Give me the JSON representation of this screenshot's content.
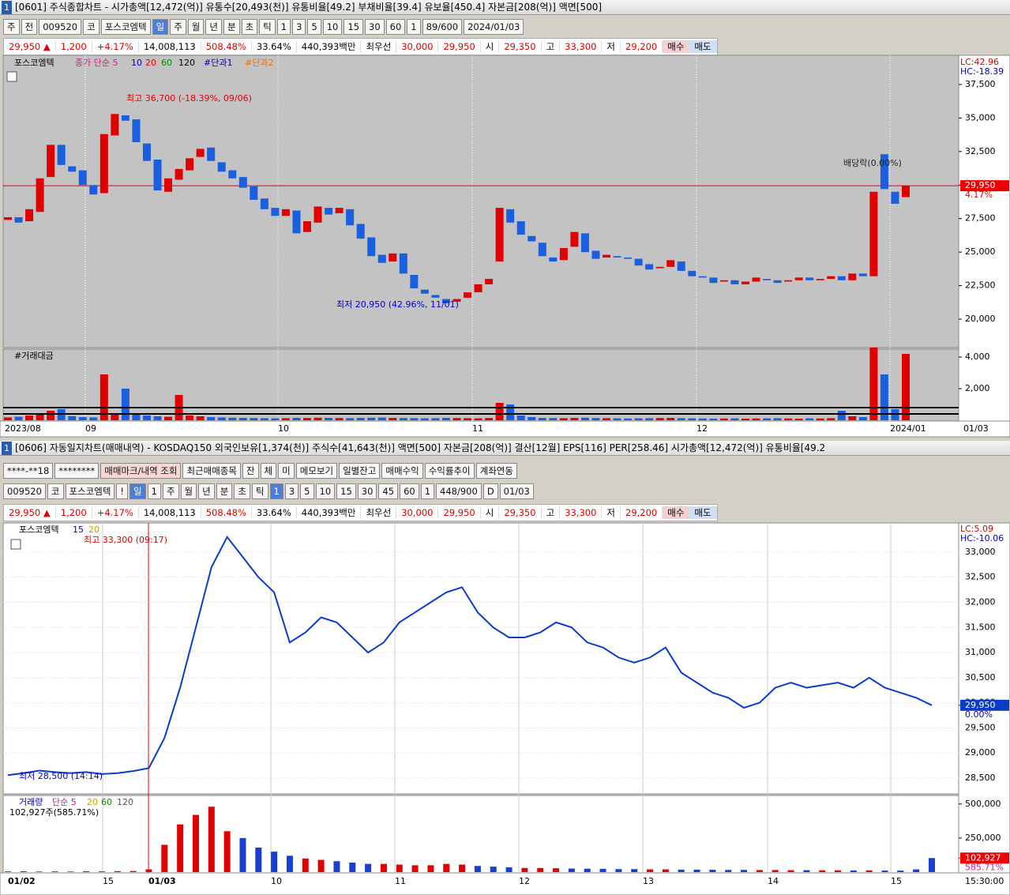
{
  "windows": [
    {
      "title": "[0601] 주식종합차트 - 시가총액[12,472(억)] 유통수[20,493(천)] 유통비율[49.2] 부채비율[39.4] 유보율[450.4] 자본금[208(억)] 액면[500]",
      "toolbar": [
        "주",
        "전",
        "009520",
        "코",
        "포스코엠텍",
        "일",
        "주",
        "월",
        "년",
        "분",
        "초",
        "틱",
        "1",
        "3",
        "5",
        "10",
        "15",
        "30",
        "60",
        "1",
        "89/600",
        "2024/01/03"
      ],
      "legend": [
        "포스코엠텍",
        "종가 단순 5",
        "10",
        "20",
        "60",
        "120",
        "#단과1",
        "#단과2"
      ]
    },
    {
      "title": "[0606] 자동일지차트(매매내역) - KOSDAQ150 외국인보유[1,374(천)] 주식수[41,643(천)] 액면[500] 자본금[208(억)] 결산[12월] EPS[116] PER[258.46] 시가총액[12,472(억)] 유통비율[49.2",
      "toolbar_top": [
        "****-**18",
        "********",
        "매매마크/내역 조회",
        "최근매매종목",
        "잔",
        "체",
        "미",
        "메모보기",
        "일별잔고",
        "매매수익",
        "수익률추이",
        "계좌연동"
      ],
      "toolbar": [
        "009520",
        "코",
        "포스코엠텍",
        "!",
        "일",
        "1",
        "주",
        "월",
        "년",
        "분",
        "초",
        "틱",
        "1",
        "3",
        "5",
        "10",
        "15",
        "30",
        "45",
        "60",
        "1",
        "448/900",
        "D",
        "01/03"
      ],
      "legend": [
        "포스코엠텍",
        "15",
        "20"
      ],
      "volume_legend": [
        "거래량",
        "단순 5",
        "20",
        "60",
        "120"
      ]
    }
  ],
  "price_row": [
    "29,950 ▲",
    "1,200",
    "+4.17%",
    "14,008,113",
    "508.48%",
    "33.64%",
    "440,393백만",
    "최우선",
    "30,000",
    "29,950",
    "시",
    "29,350",
    "고",
    "33,300",
    "저",
    "29,200",
    "매수",
    "매도"
  ],
  "chart_data": [
    {
      "type": "candlestick",
      "candles": [
        [
          27400,
          27600
        ],
        [
          27600,
          27200
        ],
        [
          27300,
          28200
        ],
        [
          28000,
          30500
        ],
        [
          30600,
          33000
        ],
        [
          33000,
          31500
        ],
        [
          31400,
          31000
        ],
        [
          31100,
          30000
        ],
        [
          30000,
          29300
        ],
        [
          29400,
          33800
        ],
        [
          33700,
          35300
        ],
        [
          35200,
          34800
        ],
        [
          34900,
          33200
        ],
        [
          33100,
          31800
        ],
        [
          31900,
          29600
        ],
        [
          29500,
          30500
        ],
        [
          30400,
          31200
        ],
        [
          31100,
          32000
        ],
        [
          32100,
          32700
        ],
        [
          32800,
          31800
        ],
        [
          31700,
          31000
        ],
        [
          31100,
          30500
        ],
        [
          30600,
          29800
        ],
        [
          29900,
          28900
        ],
        [
          29000,
          28200
        ],
        [
          28300,
          27700
        ],
        [
          27700,
          28200
        ],
        [
          28100,
          26400
        ],
        [
          26500,
          27300
        ],
        [
          27200,
          28400
        ],
        [
          28300,
          27800
        ],
        [
          27900,
          28300
        ],
        [
          28200,
          27000
        ],
        [
          27100,
          26000
        ],
        [
          26100,
          24700
        ],
        [
          24800,
          24200
        ],
        [
          24300,
          24900
        ],
        [
          24900,
          23400
        ],
        [
          23300,
          22300
        ],
        [
          22200,
          21900
        ],
        [
          21800,
          21600
        ],
        [
          21500,
          21200
        ],
        [
          21300,
          21500
        ],
        [
          21600,
          22000
        ],
        [
          22000,
          22600
        ],
        [
          22600,
          23000
        ],
        [
          24300,
          28300
        ],
        [
          28200,
          27200
        ],
        [
          27300,
          26300
        ],
        [
          26200,
          25800
        ],
        [
          25700,
          24700
        ],
        [
          24600,
          24300
        ],
        [
          24400,
          25300
        ],
        [
          25400,
          26500
        ],
        [
          26400,
          25000
        ],
        [
          25100,
          24500
        ],
        [
          24600,
          24800
        ],
        [
          24700,
          24600
        ],
        [
          24600,
          24500
        ],
        [
          24500,
          24000
        ],
        [
          24100,
          23700
        ],
        [
          23800,
          23900
        ],
        [
          23900,
          24400
        ],
        [
          24300,
          23600
        ],
        [
          23600,
          23200
        ],
        [
          23200,
          23100
        ],
        [
          23100,
          22700
        ],
        [
          22800,
          22900
        ],
        [
          22900,
          22600
        ],
        [
          22600,
          22800
        ],
        [
          22800,
          23100
        ],
        [
          23000,
          22900
        ],
        [
          22900,
          22700
        ],
        [
          22800,
          22900
        ],
        [
          22900,
          23100
        ],
        [
          23100,
          22900
        ],
        [
          22900,
          23000
        ],
        [
          23000,
          23200
        ],
        [
          23200,
          22900
        ],
        [
          22900,
          23400
        ],
        [
          23400,
          23200
        ],
        [
          23200,
          29500
        ],
        [
          32300,
          29700
        ],
        [
          29500,
          28600
        ],
        [
          29100,
          29950
        ]
      ],
      "ylim": [
        17880,
        39560
      ],
      "yticks": [
        {
          "value": 20000,
          "label": "20,000"
        },
        {
          "value": 22500,
          "label": "22,500"
        },
        {
          "value": 25000,
          "label": "25,000"
        },
        {
          "value": 27500,
          "label": "27,500"
        },
        {
          "value": 30000,
          "label": "30,000"
        },
        {
          "value": 32500,
          "label": "32,500"
        },
        {
          "value": 35000,
          "label": "35,000"
        },
        {
          "value": 37500,
          "label": "37,500"
        }
      ],
      "current": {
        "value": 29950,
        "label": "29,950"
      },
      "change_label": "4.17%",
      "lc": "LC:42.96",
      "hc": "HC:-18.39",
      "annotations": [
        "최고 36,700 (-18.39%, 09/06)",
        "최저 20,950 (42.96%, 11/01)",
        "배당락(0.00%)"
      ],
      "volume_title": "#거래대금",
      "volume": [
        180,
        220,
        300,
        420,
        600,
        700,
        260,
        200,
        180,
        2900,
        380,
        2000,
        400,
        300,
        250,
        220,
        1600,
        300,
        250,
        200,
        180,
        160,
        150,
        140,
        130,
        120,
        130,
        150,
        140,
        160,
        150,
        140,
        130,
        150,
        160,
        170,
        150,
        140,
        130,
        120,
        130,
        150,
        140,
        130,
        120,
        140,
        1100,
        1000,
        300,
        200,
        150,
        140,
        130,
        150,
        160,
        140,
        130,
        120,
        110,
        120,
        130,
        140,
        150,
        130,
        120,
        110,
        100,
        110,
        120,
        100,
        110,
        120,
        130,
        110,
        100,
        120,
        110,
        130,
        600,
        250,
        200,
        4600,
        2900,
        700,
        4200
      ],
      "vol_ylim": [
        0,
        4400
      ],
      "vol_yticks": [
        {
          "value": 2000,
          "label": "2,000"
        },
        {
          "value": 4000,
          "label": "4,000"
        }
      ],
      "xlabels": [
        "2023/08",
        "09",
        "10",
        "11",
        "12",
        "2024/01",
        "01/03"
      ]
    },
    {
      "type": "line",
      "values": [
        28560,
        28600,
        28650,
        28620,
        28600,
        28620,
        28580,
        28600,
        28640,
        28700,
        29300,
        30300,
        31500,
        32700,
        33300,
        32900,
        32500,
        32200,
        31200,
        31400,
        31700,
        31600,
        31300,
        31000,
        31200,
        31600,
        31800,
        32000,
        32200,
        32300,
        31800,
        31500,
        31300,
        31300,
        31400,
        31600,
        31500,
        31200,
        31100,
        30900,
        30800,
        30900,
        31100,
        30600,
        30400,
        30200,
        30100,
        29900,
        30000,
        30300,
        30400,
        30300,
        30350,
        30400,
        30300,
        30500,
        30300,
        30200,
        30100,
        29950
      ],
      "color": "#0a3cc8",
      "ylim": [
        28186,
        33580
      ],
      "yticks": [
        {
          "value": 28500,
          "label": "28,500"
        },
        {
          "value": 29000,
          "label": "29,000"
        },
        {
          "value": 29500,
          "label": "29,500"
        },
        {
          "value": 30000,
          "label": "30,000"
        },
        {
          "value": 30500,
          "label": "30,500"
        },
        {
          "value": 31000,
          "label": "31,000"
        },
        {
          "value": 31500,
          "label": "31,500"
        },
        {
          "value": 32000,
          "label": "32,000"
        },
        {
          "value": 32500,
          "label": "32,500"
        },
        {
          "value": 33000,
          "label": "33,000"
        }
      ],
      "current": {
        "value": 29950,
        "label": "29,950"
      },
      "change_label": "0.00%",
      "lc": "LC:5.09",
      "hc": "HC:-10.06",
      "annotations": [
        "최고 33,300 (09:17)",
        "최저 28,500 (14:14)"
      ],
      "volume_note": "102,927주(585.71%)",
      "volume": [
        5000,
        6000,
        4000,
        5000,
        4000,
        6000,
        5000,
        7000,
        8000,
        20000,
        200000,
        350000,
        420000,
        480000,
        300000,
        250000,
        180000,
        150000,
        120000,
        100000,
        90000,
        80000,
        70000,
        60000,
        60000,
        55000,
        50000,
        50000,
        60000,
        55000,
        45000,
        40000,
        35000,
        30000,
        30000,
        28000,
        26000,
        25000,
        24000,
        22000,
        22000,
        20000,
        20000,
        18000,
        18000,
        17000,
        16000,
        16000,
        15000,
        15000,
        14000,
        14000,
        13000,
        13000,
        12000,
        12000,
        11000,
        11000,
        20000,
        102927
      ],
      "vol_ylim": [
        0,
        556800
      ],
      "vol_yticks": [
        {
          "value": 250000,
          "label": "250,000"
        },
        {
          "value": 500000,
          "label": "500,000"
        }
      ],
      "vol_current": {
        "value": 102927,
        "label": "102,927"
      },
      "vol_change_label": "585.71%",
      "xlabels": [
        "01/02",
        "15",
        "01/03",
        "10",
        "11",
        "12",
        "13",
        "14",
        "15",
        "15:30:00"
      ]
    }
  ]
}
